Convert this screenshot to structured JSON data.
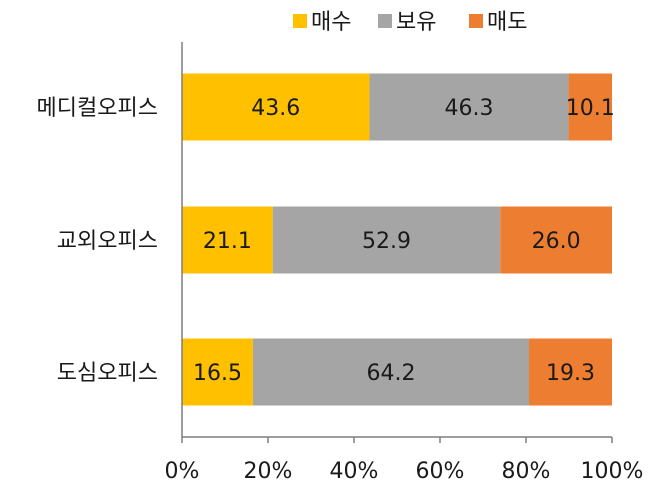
{
  "chart_data": {
    "type": "bar",
    "orientation": "horizontal",
    "stacked": true,
    "percent": true,
    "categories": [
      "메디컬오피스",
      "교외오피스",
      "도심오피스"
    ],
    "series": [
      {
        "name": "매수",
        "color": "#FFC000",
        "values": [
          43.6,
          21.1,
          16.5
        ],
        "labels": [
          "43.6",
          "21.1",
          "16.5"
        ]
      },
      {
        "name": "보유",
        "color": "#A5A5A5",
        "values": [
          46.3,
          52.9,
          64.2
        ],
        "labels": [
          "46.3",
          "52.9",
          "64.2"
        ]
      },
      {
        "name": "매도",
        "color": "#ED7D31",
        "values": [
          10.1,
          26.0,
          19.3
        ],
        "labels": [
          "10.1",
          "26.0",
          "19.3"
        ]
      }
    ],
    "xlim": [
      0,
      100
    ],
    "xticks": [
      "0%",
      "20%",
      "40%",
      "60%",
      "80%",
      "100%"
    ],
    "title": "",
    "xlabel": "",
    "ylabel": "",
    "legend": "top",
    "grid": false
  }
}
